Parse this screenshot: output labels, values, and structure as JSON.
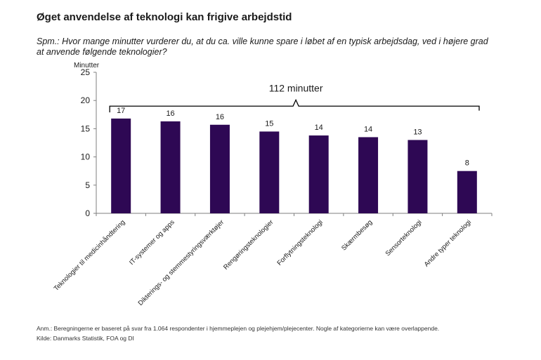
{
  "title": "Øget anvendelse af teknologi kan frigive arbejdstid",
  "subtitle": "Spm.: Hvor mange minutter vurderer du, at du ca. ville kunne spare i løbet af en typisk arbejdsdag, ved i højere grad at anvende følgende teknologier?",
  "note": "Anm.: Beregningerne er baseret på svar fra 1.064 respondenter i hjemmeplejen og plejehjem/plejecenter. Nogle af kategorierne kan være overlappende.",
  "source": "Kilde: Danmarks Statistik, FOA og DI",
  "colors": {
    "bar": "#2e0854",
    "axis": "#7f7f7f",
    "text": "#1a1a1a"
  },
  "chart_data": {
    "type": "bar",
    "ylabel": "Minutter",
    "ylim": [
      0,
      25
    ],
    "yticks": [
      0,
      5,
      10,
      15,
      20,
      25
    ],
    "grid": false,
    "categories": [
      "Teknologier til medicinhåndtering",
      "IT-systemer og apps",
      "Dikterings- og stemmestyringsværktøjer",
      "Rengøringsteknologier",
      "Forflytningsteknologi",
      "Skærmbesøg",
      "Sensorteknologi",
      "Andre typer teknologi"
    ],
    "values": [
      16.8,
      16.3,
      15.7,
      14.5,
      13.8,
      13.5,
      13.0,
      7.5
    ],
    "data_labels": [
      "17",
      "16",
      "16",
      "15",
      "14",
      "14",
      "13",
      "8"
    ],
    "annotation": "112 minutter"
  }
}
